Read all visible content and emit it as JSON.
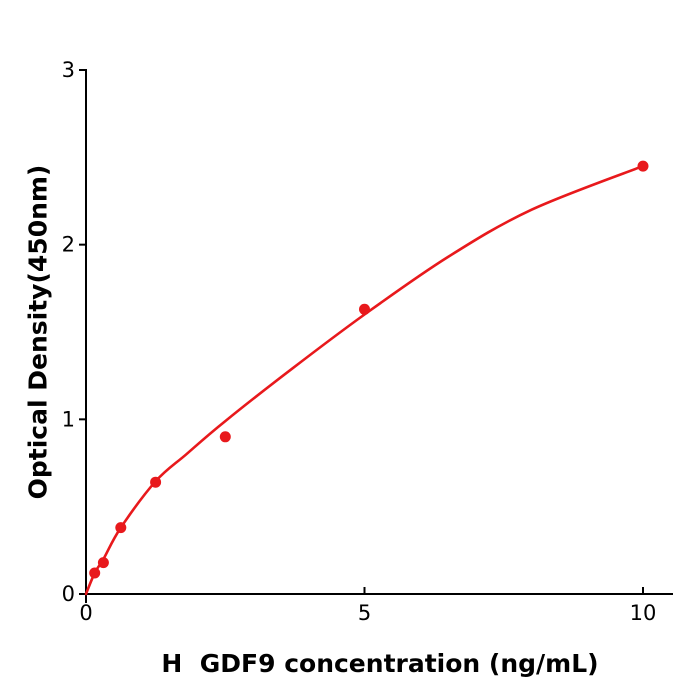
{
  "chart_data": {
    "type": "scatter",
    "title": "",
    "xlabel": "H  GDF9 concentration (ng/mL)",
    "ylabel": "Optical Density(450nm)",
    "xlim": [
      0,
      10.55
    ],
    "ylim": [
      0,
      3
    ],
    "grid": false,
    "legend": "none",
    "colors": {
      "curve": "#e8191c",
      "points": "#e8191c",
      "axis": "#000000"
    },
    "x_ticks": [
      {
        "value": 0,
        "label": "0"
      },
      {
        "value": 5,
        "label": "5"
      },
      {
        "value": 10,
        "label": "10"
      }
    ],
    "y_ticks": [
      {
        "value": 0,
        "label": "0"
      },
      {
        "value": 1,
        "label": "1"
      },
      {
        "value": 2,
        "label": "2"
      },
      {
        "value": 3,
        "label": "3"
      }
    ],
    "series": [
      {
        "name": "fit-curve",
        "type": "line",
        "color": "#e8191c",
        "points": [
          {
            "x": 0,
            "y": 0
          },
          {
            "x": 0.156,
            "y": 0.12
          },
          {
            "x": 0.3125,
            "y": 0.2
          },
          {
            "x": 0.625,
            "y": 0.38
          },
          {
            "x": 1.25,
            "y": 0.645
          },
          {
            "x": 1.8,
            "y": 0.8
          },
          {
            "x": 2.5,
            "y": 0.99
          },
          {
            "x": 3.7,
            "y": 1.29
          },
          {
            "x": 5,
            "y": 1.6
          },
          {
            "x": 6.5,
            "y": 1.93
          },
          {
            "x": 8,
            "y": 2.2
          },
          {
            "x": 10,
            "y": 2.45
          }
        ]
      },
      {
        "name": "standard-points",
        "type": "scatter",
        "color": "#e8191c",
        "points": [
          {
            "x": 0.156,
            "y": 0.12
          },
          {
            "x": 0.3125,
            "y": 0.18
          },
          {
            "x": 0.625,
            "y": 0.38
          },
          {
            "x": 1.25,
            "y": 0.64
          },
          {
            "x": 2.5,
            "y": 0.9
          },
          {
            "x": 5,
            "y": 1.63
          },
          {
            "x": 10,
            "y": 2.45
          }
        ]
      }
    ]
  }
}
